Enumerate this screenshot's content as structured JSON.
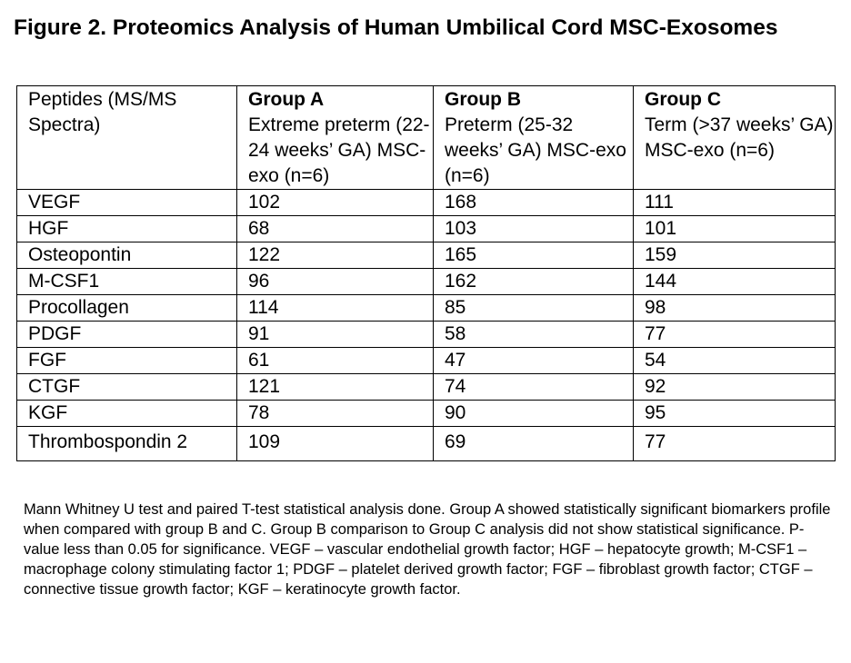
{
  "title": "Figure 2. Proteomics Analysis of Human Umbilical Cord MSC-Exosomes",
  "table": {
    "header": {
      "col0": "Peptides (MS/MS Spectra)",
      "groups": [
        {
          "name": "Group A",
          "desc": "Extreme preterm (22-24 weeks’ GA) MSC-exo (n=6)"
        },
        {
          "name": "Group B",
          "desc": "Preterm (25-32 weeks’ GA) MSC-exo (n=6)"
        },
        {
          "name": "Group C",
          "desc": "Term (>37 weeks’ GA) MSC-exo (n=6)"
        }
      ]
    },
    "rows": [
      {
        "peptide": "VEGF",
        "a": "102",
        "b": "168",
        "c": "111"
      },
      {
        "peptide": "HGF",
        "a": "68",
        "b": "103",
        "c": "101"
      },
      {
        "peptide": "Osteopontin",
        "a": "122",
        "b": "165",
        "c": "159"
      },
      {
        "peptide": "M-CSF1",
        "a": "96",
        "b": "162",
        "c": "144"
      },
      {
        "peptide": "Procollagen",
        "a": "114",
        "b": "85",
        "c": "98"
      },
      {
        "peptide": "PDGF",
        "a": "91",
        "b": "58",
        "c": "77"
      },
      {
        "peptide": "FGF",
        "a": "61",
        "b": "47",
        "c": "54"
      },
      {
        "peptide": "CTGF",
        "a": "121",
        "b": "74",
        "c": "92"
      },
      {
        "peptide": "KGF",
        "a": "78",
        "b": "90",
        "c": "95"
      },
      {
        "peptide": "Thrombospondin 2",
        "a": "109",
        "b": "69",
        "c": "77"
      }
    ]
  },
  "footnote": "Mann Whitney U test and paired T-test statistical analysis done. Group A showed statistically significant biomarkers profile when compared with group B and C. Group B comparison to Group C analysis did not show statistical significance. P-value less than 0.05 for significance. VEGF – vascular endothelial growth factor; HGF – hepatocyte growth; M-CSF1 – macrophage colony stimulating factor 1; PDGF – platelet derived growth factor; FGF – fibroblast growth factor; CTGF – connective tissue growth factor; KGF – keratinocyte growth factor."
}
